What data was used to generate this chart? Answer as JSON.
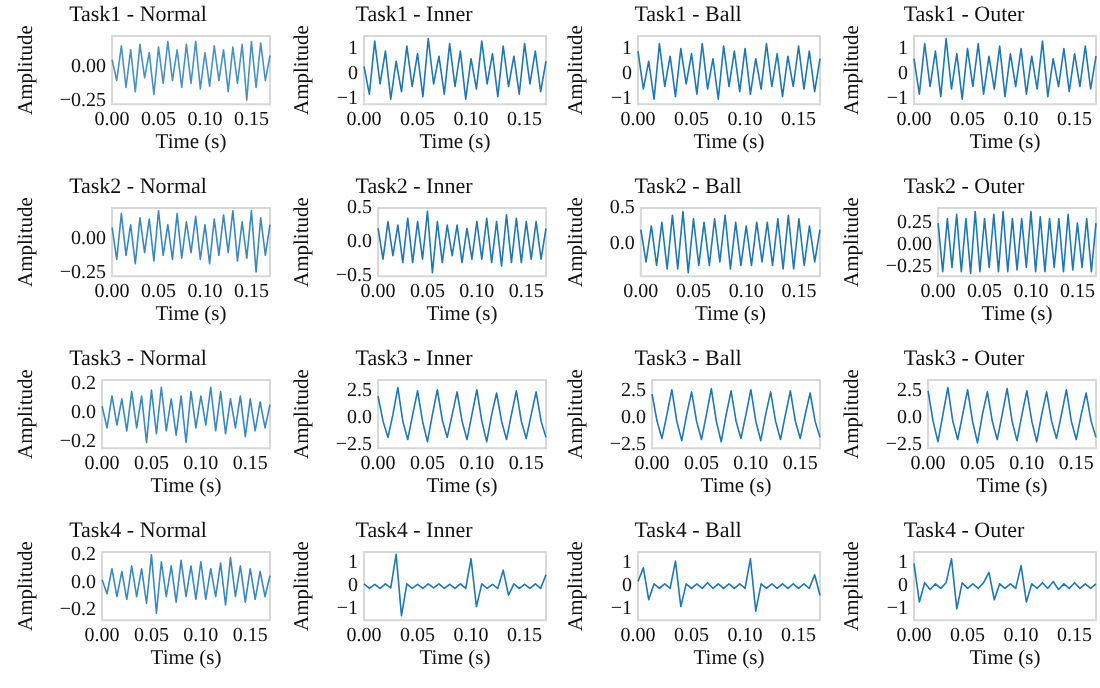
{
  "chart_data": [
    {
      "type": "line",
      "title": "Task1 - Normal",
      "xlabel": "Time (s)",
      "ylabel": "Amplitude",
      "xlim": [
        0,
        0.17
      ],
      "xticks": [
        {
          "value": 0,
          "label": "0.00"
        },
        {
          "value": 0.05,
          "label": "0.05"
        },
        {
          "value": 0.1,
          "label": "0.10"
        },
        {
          "value": 0.15,
          "label": "0.15"
        }
      ],
      "ylim": [
        -0.27,
        0.22
      ],
      "yticks": [
        {
          "value": -0.25,
          "label": "−0.25"
        },
        {
          "value": 0,
          "label": "0.00"
        }
      ],
      "x": [
        0,
        0.005,
        0.01,
        0.015,
        0.02,
        0.025,
        0.03,
        0.035,
        0.04,
        0.045,
        0.05,
        0.055,
        0.06,
        0.065,
        0.07,
        0.075,
        0.08,
        0.085,
        0.09,
        0.095,
        0.1,
        0.105,
        0.11,
        0.115,
        0.12,
        0.125,
        0.13,
        0.135,
        0.14,
        0.145,
        0.15,
        0.155,
        0.16,
        0.165,
        0.17
      ],
      "series": [
        {
          "color": "#4a91c2",
          "values": [
            0.05,
            -0.1,
            0.15,
            -0.15,
            0.12,
            -0.18,
            0.16,
            -0.08,
            0.1,
            -0.2,
            0.14,
            -0.12,
            0.18,
            -0.1,
            0.12,
            -0.15,
            0.16,
            -0.12,
            0.18,
            -0.16,
            0.1,
            -0.14,
            0.15,
            -0.1,
            0.12,
            -0.18,
            0.14,
            -0.12,
            0.16,
            -0.24,
            0.18,
            -0.15,
            0.17,
            -0.1,
            0.08
          ]
        }
      ]
    },
    {
      "type": "line",
      "title": "Task1 - Inner",
      "xlabel": "Time (s)",
      "ylabel": "Amplitude",
      "xlim": [
        0,
        0.17
      ],
      "xticks": [
        {
          "value": 0,
          "label": "0.00"
        },
        {
          "value": 0.05,
          "label": "0.05"
        },
        {
          "value": 0.1,
          "label": "0.10"
        },
        {
          "value": 0.15,
          "label": "0.15"
        }
      ],
      "ylim": [
        -1.2,
        1.5
      ],
      "yticks": [
        {
          "value": -1,
          "label": "−1"
        },
        {
          "value": 0,
          "label": "0"
        },
        {
          "value": 1,
          "label": "1"
        }
      ],
      "x": [
        0,
        0.005,
        0.01,
        0.015,
        0.02,
        0.025,
        0.03,
        0.035,
        0.04,
        0.045,
        0.05,
        0.055,
        0.06,
        0.065,
        0.07,
        0.075,
        0.08,
        0.085,
        0.09,
        0.095,
        0.1,
        0.105,
        0.11,
        0.115,
        0.12,
        0.125,
        0.13,
        0.135,
        0.14,
        0.145,
        0.15,
        0.155,
        0.16,
        0.165,
        0.17
      ],
      "series": [
        {
          "color": "#1f77b4",
          "values": [
            0.3,
            -0.8,
            1.3,
            -0.4,
            0.9,
            -1.0,
            0.5,
            -0.7,
            1.1,
            -0.5,
            0.8,
            -0.9,
            1.4,
            -0.4,
            0.7,
            -0.8,
            1.2,
            -0.5,
            0.9,
            -1.0,
            0.6,
            -0.6,
            1.3,
            -0.4,
            0.8,
            -0.9,
            1.1,
            -0.5,
            0.7,
            -0.8,
            1.2,
            -0.4,
            0.9,
            -0.7,
            0.5
          ]
        }
      ]
    },
    {
      "type": "line",
      "title": "Task1 - Ball",
      "xlabel": "Time (s)",
      "ylabel": "Amplitude",
      "xlim": [
        0,
        0.17
      ],
      "xticks": [
        {
          "value": 0,
          "label": "0.00"
        },
        {
          "value": 0.05,
          "label": "0.05"
        },
        {
          "value": 0.1,
          "label": "0.10"
        },
        {
          "value": 0.15,
          "label": "0.15"
        }
      ],
      "ylim": [
        -1.2,
        1.5
      ],
      "yticks": [
        {
          "value": -1,
          "label": "−1"
        },
        {
          "value": 0,
          "label": "0"
        },
        {
          "value": 1,
          "label": "1"
        }
      ],
      "x": [
        0,
        0.005,
        0.01,
        0.015,
        0.02,
        0.025,
        0.03,
        0.035,
        0.04,
        0.045,
        0.05,
        0.055,
        0.06,
        0.065,
        0.07,
        0.075,
        0.08,
        0.085,
        0.09,
        0.095,
        0.1,
        0.105,
        0.11,
        0.115,
        0.12,
        0.125,
        0.13,
        0.135,
        0.14,
        0.145,
        0.15,
        0.155,
        0.16,
        0.165,
        0.17
      ],
      "series": [
        {
          "color": "#1f77b4",
          "values": [
            0.9,
            -0.6,
            0.5,
            -1.0,
            1.2,
            -0.5,
            0.7,
            -0.9,
            1.0,
            -0.4,
            0.8,
            -0.8,
            1.2,
            -0.6,
            0.6,
            -1.0,
            1.1,
            -0.5,
            0.9,
            -0.7,
            1.0,
            -0.8,
            0.6,
            -0.6,
            1.2,
            -0.5,
            0.8,
            -0.9,
            0.7,
            -0.5,
            1.1,
            -0.6,
            0.9,
            -0.7,
            0.6
          ]
        }
      ]
    },
    {
      "type": "line",
      "title": "Task1 - Outer",
      "xlabel": "Time (s)",
      "ylabel": "Amplitude",
      "xlim": [
        0,
        0.17
      ],
      "xticks": [
        {
          "value": 0,
          "label": "0.00"
        },
        {
          "value": 0.05,
          "label": "0.05"
        },
        {
          "value": 0.1,
          "label": "0.10"
        },
        {
          "value": 0.15,
          "label": "0.15"
        }
      ],
      "ylim": [
        -1.2,
        1.5
      ],
      "yticks": [
        {
          "value": -1,
          "label": "−1"
        },
        {
          "value": 0,
          "label": "0"
        },
        {
          "value": 1,
          "label": "1"
        }
      ],
      "x": [
        0,
        0.005,
        0.01,
        0.015,
        0.02,
        0.025,
        0.03,
        0.035,
        0.04,
        0.045,
        0.05,
        0.055,
        0.06,
        0.065,
        0.07,
        0.075,
        0.08,
        0.085,
        0.09,
        0.095,
        0.1,
        0.105,
        0.11,
        0.115,
        0.12,
        0.125,
        0.13,
        0.135,
        0.14,
        0.145,
        0.15,
        0.155,
        0.16,
        0.165,
        0.17
      ],
      "series": [
        {
          "color": "#1f77b4",
          "values": [
            0.6,
            -0.8,
            1.2,
            -0.5,
            0.9,
            -0.9,
            1.4,
            -0.6,
            0.8,
            -1.0,
            1.0,
            -0.5,
            1.2,
            -0.8,
            0.7,
            -0.6,
            1.1,
            -0.9,
            0.8,
            -0.5,
            1.0,
            -0.8,
            0.7,
            -0.6,
            1.3,
            -0.9,
            0.6,
            -0.5,
            1.0,
            -0.7,
            0.8,
            -0.5,
            1.1,
            -0.6,
            0.7
          ]
        }
      ]
    },
    {
      "type": "line",
      "title": "Task2 - Normal",
      "xlabel": "Time (s)",
      "ylabel": "Amplitude",
      "xlim": [
        0,
        0.17
      ],
      "xticks": [
        {
          "value": 0,
          "label": "0.00"
        },
        {
          "value": 0.05,
          "label": "0.05"
        },
        {
          "value": 0.1,
          "label": "0.10"
        },
        {
          "value": 0.15,
          "label": "0.15"
        }
      ],
      "ylim": [
        -0.27,
        0.22
      ],
      "yticks": [
        {
          "value": -0.25,
          "label": "−0.25"
        },
        {
          "value": 0,
          "label": "0.00"
        }
      ],
      "x": [
        0,
        0.005,
        0.01,
        0.015,
        0.02,
        0.025,
        0.03,
        0.035,
        0.04,
        0.045,
        0.05,
        0.055,
        0.06,
        0.065,
        0.07,
        0.075,
        0.08,
        0.085,
        0.09,
        0.095,
        0.1,
        0.105,
        0.11,
        0.115,
        0.12,
        0.125,
        0.13,
        0.135,
        0.14,
        0.145,
        0.15,
        0.155,
        0.16,
        0.165,
        0.17
      ],
      "series": [
        {
          "color": "#3b88c0",
          "values": [
            0.08,
            -0.15,
            0.18,
            -0.12,
            0.1,
            -0.18,
            0.15,
            -0.1,
            0.14,
            -0.16,
            0.2,
            -0.12,
            0.1,
            -0.15,
            0.18,
            -0.14,
            0.12,
            -0.1,
            0.16,
            -0.15,
            0.1,
            -0.18,
            0.14,
            -0.12,
            0.17,
            -0.1,
            0.2,
            -0.16,
            0.12,
            -0.14,
            0.2,
            -0.24,
            0.15,
            -0.12,
            0.1
          ]
        }
      ]
    },
    {
      "type": "line",
      "title": "Task2 - Inner",
      "xlabel": "Time (s)",
      "ylabel": "Amplitude",
      "xlim": [
        0,
        0.17
      ],
      "xticks": [
        {
          "value": 0,
          "label": "0.00"
        },
        {
          "value": 0.05,
          "label": "0.05"
        },
        {
          "value": 0.1,
          "label": "0.10"
        },
        {
          "value": 0.15,
          "label": "0.15"
        }
      ],
      "ylim": [
        -0.5,
        0.5
      ],
      "yticks": [
        {
          "value": -0.5,
          "label": "−0.5"
        },
        {
          "value": 0,
          "label": "0.0"
        },
        {
          "value": 0.5,
          "label": "0.5"
        }
      ],
      "x": [
        0,
        0.005,
        0.01,
        0.015,
        0.02,
        0.025,
        0.03,
        0.035,
        0.04,
        0.045,
        0.05,
        0.055,
        0.06,
        0.065,
        0.07,
        0.075,
        0.08,
        0.085,
        0.09,
        0.095,
        0.1,
        0.105,
        0.11,
        0.115,
        0.12,
        0.125,
        0.13,
        0.135,
        0.14,
        0.145,
        0.15,
        0.155,
        0.16,
        0.165,
        0.17
      ],
      "series": [
        {
          "color": "#1f77b4",
          "values": [
            0.2,
            -0.25,
            0.3,
            -0.2,
            0.25,
            -0.3,
            0.35,
            -0.3,
            0.3,
            -0.25,
            0.45,
            -0.45,
            0.3,
            -0.3,
            0.25,
            -0.2,
            0.25,
            -0.3,
            0.2,
            -0.25,
            0.3,
            -0.25,
            0.35,
            -0.3,
            0.3,
            -0.35,
            0.4,
            -0.3,
            0.35,
            -0.3,
            0.3,
            -0.25,
            0.3,
            -0.25,
            0.2
          ]
        }
      ]
    },
    {
      "type": "line",
      "title": "Task2 - Ball",
      "xlabel": "Time (s)",
      "ylabel": "Amplitude",
      "xlim": [
        0,
        0.17
      ],
      "xticks": [
        {
          "value": 0,
          "label": "0.00"
        },
        {
          "value": 0.05,
          "label": "0.05"
        },
        {
          "value": 0.1,
          "label": "0.10"
        },
        {
          "value": 0.15,
          "label": "0.15"
        }
      ],
      "ylim": [
        -0.45,
        0.5
      ],
      "yticks": [
        {
          "value": 0,
          "label": "0.0"
        },
        {
          "value": 0.5,
          "label": "0.5"
        }
      ],
      "x": [
        0,
        0.005,
        0.01,
        0.015,
        0.02,
        0.025,
        0.03,
        0.035,
        0.04,
        0.045,
        0.05,
        0.055,
        0.06,
        0.065,
        0.07,
        0.075,
        0.08,
        0.085,
        0.09,
        0.095,
        0.1,
        0.105,
        0.11,
        0.115,
        0.12,
        0.125,
        0.13,
        0.135,
        0.14,
        0.145,
        0.15,
        0.155,
        0.16,
        0.165,
        0.17
      ],
      "series": [
        {
          "color": "#1f77b4",
          "values": [
            0.2,
            -0.25,
            0.25,
            -0.3,
            0.3,
            -0.35,
            0.4,
            -0.35,
            0.45,
            -0.4,
            0.35,
            -0.3,
            0.3,
            -0.3,
            0.35,
            -0.25,
            0.4,
            -0.35,
            0.3,
            -0.3,
            0.25,
            -0.3,
            0.3,
            -0.25,
            0.3,
            -0.3,
            0.35,
            -0.35,
            0.4,
            -0.35,
            0.35,
            -0.3,
            0.25,
            -0.25,
            0.2
          ]
        }
      ]
    },
    {
      "type": "line",
      "title": "Task2 - Outer",
      "xlabel": "Time (s)",
      "ylabel": "Amplitude",
      "xlim": [
        0,
        0.17
      ],
      "xticks": [
        {
          "value": 0,
          "label": "0.00"
        },
        {
          "value": 0.05,
          "label": "0.05"
        },
        {
          "value": 0.1,
          "label": "0.10"
        },
        {
          "value": 0.15,
          "label": "0.15"
        }
      ],
      "ylim": [
        -0.35,
        0.42
      ],
      "yticks": [
        {
          "value": -0.25,
          "label": "−0.25"
        },
        {
          "value": 0,
          "label": "0.00"
        },
        {
          "value": 0.25,
          "label": "0.25"
        }
      ],
      "x": [
        0,
        0.005,
        0.01,
        0.015,
        0.02,
        0.025,
        0.03,
        0.035,
        0.04,
        0.045,
        0.05,
        0.055,
        0.06,
        0.065,
        0.07,
        0.075,
        0.08,
        0.085,
        0.09,
        0.095,
        0.1,
        0.105,
        0.11,
        0.115,
        0.12,
        0.125,
        0.13,
        0.135,
        0.14,
        0.145,
        0.15,
        0.155,
        0.16,
        0.165,
        0.17
      ],
      "series": [
        {
          "color": "#1f77b4",
          "values": [
            0.25,
            -0.3,
            0.3,
            -0.25,
            0.35,
            -0.3,
            0.3,
            -0.32,
            0.38,
            -0.3,
            0.3,
            -0.25,
            0.35,
            -0.3,
            0.38,
            -0.3,
            0.3,
            -0.28,
            0.3,
            -0.25,
            0.38,
            -0.3,
            0.32,
            -0.3,
            0.3,
            -0.25,
            0.3,
            -0.3,
            0.35,
            -0.28,
            0.25,
            -0.25,
            0.3,
            -0.3,
            0.25
          ]
        }
      ]
    },
    {
      "type": "line",
      "title": "Task3 - Normal",
      "xlabel": "Time (s)",
      "ylabel": "Amplitude",
      "xlim": [
        0,
        0.17
      ],
      "xticks": [
        {
          "value": 0,
          "label": "0.00"
        },
        {
          "value": 0.05,
          "label": "0.05"
        },
        {
          "value": 0.1,
          "label": "0.10"
        },
        {
          "value": 0.15,
          "label": "0.15"
        }
      ],
      "ylim": [
        -0.24,
        0.23
      ],
      "yticks": [
        {
          "value": -0.2,
          "label": "−0.2"
        },
        {
          "value": 0,
          "label": "0.0"
        },
        {
          "value": 0.2,
          "label": "0.2"
        }
      ],
      "x": [
        0,
        0.005,
        0.01,
        0.015,
        0.02,
        0.025,
        0.03,
        0.035,
        0.04,
        0.045,
        0.05,
        0.055,
        0.06,
        0.065,
        0.07,
        0.075,
        0.08,
        0.085,
        0.09,
        0.095,
        0.1,
        0.105,
        0.11,
        0.115,
        0.12,
        0.125,
        0.13,
        0.135,
        0.14,
        0.145,
        0.15,
        0.155,
        0.16,
        0.165,
        0.17
      ],
      "series": [
        {
          "color": "#3b88c0",
          "values": [
            0.05,
            -0.1,
            0.12,
            -0.08,
            0.1,
            -0.12,
            0.15,
            -0.1,
            0.12,
            -0.2,
            0.16,
            -0.14,
            0.18,
            -0.12,
            0.1,
            -0.15,
            0.12,
            -0.2,
            0.15,
            -0.1,
            0.12,
            -0.08,
            0.18,
            -0.12,
            0.15,
            -0.14,
            0.1,
            -0.1,
            0.12,
            -0.16,
            0.1,
            -0.12,
            0.08,
            -0.1,
            0.06
          ]
        }
      ]
    },
    {
      "type": "line",
      "title": "Task3 - Inner",
      "xlabel": "Time (s)",
      "ylabel": "Amplitude",
      "xlim": [
        0,
        0.17
      ],
      "xticks": [
        {
          "value": 0,
          "label": "0.00"
        },
        {
          "value": 0.05,
          "label": "0.05"
        },
        {
          "value": 0.1,
          "label": "0.10"
        },
        {
          "value": 0.15,
          "label": "0.15"
        }
      ],
      "ylim": [
        -2.8,
        3.5
      ],
      "yticks": [
        {
          "value": -2.5,
          "label": "−2.5"
        },
        {
          "value": 0,
          "label": "0.0"
        },
        {
          "value": 2.5,
          "label": "2.5"
        }
      ],
      "x": [
        0,
        0.005,
        0.01,
        0.015,
        0.02,
        0.025,
        0.03,
        0.035,
        0.04,
        0.045,
        0.05,
        0.055,
        0.06,
        0.065,
        0.07,
        0.075,
        0.08,
        0.085,
        0.09,
        0.095,
        0.1,
        0.105,
        0.11,
        0.115,
        0.12,
        0.125,
        0.13,
        0.135,
        0.14,
        0.145,
        0.15,
        0.155,
        0.16,
        0.165,
        0.17
      ],
      "series": [
        {
          "color": "#1f77b4",
          "values": [
            2.0,
            -0.3,
            -1.8,
            0.3,
            2.8,
            -0.3,
            -2.0,
            0.3,
            2.5,
            -0.3,
            -2.2,
            0.3,
            2.6,
            -0.2,
            -1.8,
            0.3,
            2.4,
            -0.3,
            -2.0,
            0.3,
            2.6,
            -0.3,
            -2.2,
            0.3,
            2.3,
            -0.3,
            -2.0,
            0.3,
            2.5,
            -0.3,
            -1.9,
            0.3,
            2.4,
            -0.3,
            -1.8
          ]
        }
      ]
    },
    {
      "type": "line",
      "title": "Task3 - Ball",
      "xlabel": "Time (s)",
      "ylabel": "Amplitude",
      "xlim": [
        0,
        0.17
      ],
      "xticks": [
        {
          "value": 0,
          "label": "0.00"
        },
        {
          "value": 0.05,
          "label": "0.05"
        },
        {
          "value": 0.1,
          "label": "0.10"
        },
        {
          "value": 0.15,
          "label": "0.15"
        }
      ],
      "ylim": [
        -2.8,
        3.5
      ],
      "yticks": [
        {
          "value": -2.5,
          "label": "−2.5"
        },
        {
          "value": 0,
          "label": "0.0"
        },
        {
          "value": 2.5,
          "label": "2.5"
        }
      ],
      "x": [
        0,
        0.005,
        0.01,
        0.015,
        0.02,
        0.025,
        0.03,
        0.035,
        0.04,
        0.045,
        0.05,
        0.055,
        0.06,
        0.065,
        0.07,
        0.075,
        0.08,
        0.085,
        0.09,
        0.095,
        0.1,
        0.105,
        0.11,
        0.115,
        0.12,
        0.125,
        0.13,
        0.135,
        0.14,
        0.145,
        0.15,
        0.155,
        0.16,
        0.165,
        0.17
      ],
      "series": [
        {
          "color": "#1f77b4",
          "values": [
            2.2,
            -0.3,
            -1.9,
            0.3,
            2.6,
            -0.3,
            -2.1,
            0.3,
            2.4,
            -0.3,
            -2.0,
            0.3,
            2.7,
            -0.3,
            -2.2,
            0.3,
            2.5,
            -0.3,
            -1.9,
            0.3,
            2.6,
            -0.3,
            -2.1,
            0.3,
            2.4,
            -0.3,
            -2.0,
            0.3,
            2.5,
            -0.3,
            -1.9,
            0.3,
            2.3,
            -0.3,
            -1.8
          ]
        }
      ]
    },
    {
      "type": "line",
      "title": "Task3 - Outer",
      "xlabel": "Time (s)",
      "ylabel": "Amplitude",
      "xlim": [
        0,
        0.17
      ],
      "xticks": [
        {
          "value": 0,
          "label": "0.00"
        },
        {
          "value": 0.05,
          "label": "0.05"
        },
        {
          "value": 0.1,
          "label": "0.10"
        },
        {
          "value": 0.15,
          "label": "0.15"
        }
      ],
      "ylim": [
        -2.8,
        3.5
      ],
      "yticks": [
        {
          "value": -2.5,
          "label": "−2.5"
        },
        {
          "value": 0,
          "label": "0.0"
        },
        {
          "value": 2.5,
          "label": "2.5"
        }
      ],
      "x": [
        0,
        0.005,
        0.01,
        0.015,
        0.02,
        0.025,
        0.03,
        0.035,
        0.04,
        0.045,
        0.05,
        0.055,
        0.06,
        0.065,
        0.07,
        0.075,
        0.08,
        0.085,
        0.09,
        0.095,
        0.1,
        0.105,
        0.11,
        0.115,
        0.12,
        0.125,
        0.13,
        0.135,
        0.14,
        0.145,
        0.15,
        0.155,
        0.16,
        0.165,
        0.17
      ],
      "series": [
        {
          "color": "#1f77b4",
          "values": [
            2.5,
            -0.3,
            -2.2,
            0.3,
            2.8,
            -0.3,
            -2.0,
            0.3,
            2.6,
            -0.3,
            -2.3,
            0.3,
            2.4,
            -0.3,
            -2.0,
            0.3,
            2.7,
            -0.3,
            -2.1,
            0.3,
            2.5,
            -0.3,
            -2.2,
            0.3,
            2.4,
            -0.3,
            -1.9,
            0.3,
            2.6,
            -0.3,
            -2.0,
            0.3,
            2.3,
            -0.3,
            -1.8
          ]
        }
      ]
    },
    {
      "type": "line",
      "title": "Task4 - Normal",
      "xlabel": "Time (s)",
      "ylabel": "Amplitude",
      "xlim": [
        0,
        0.17
      ],
      "xticks": [
        {
          "value": 0,
          "label": "0.00"
        },
        {
          "value": 0.05,
          "label": "0.05"
        },
        {
          "value": 0.1,
          "label": "0.10"
        },
        {
          "value": 0.15,
          "label": "0.15"
        }
      ],
      "ylim": [
        -0.27,
        0.22
      ],
      "yticks": [
        {
          "value": -0.2,
          "label": "−0.2"
        },
        {
          "value": 0,
          "label": "0.0"
        },
        {
          "value": 0.2,
          "label": "0.2"
        }
      ],
      "x": [
        0,
        0.005,
        0.01,
        0.015,
        0.02,
        0.025,
        0.03,
        0.035,
        0.04,
        0.045,
        0.05,
        0.055,
        0.06,
        0.065,
        0.07,
        0.075,
        0.08,
        0.085,
        0.09,
        0.095,
        0.1,
        0.105,
        0.11,
        0.115,
        0.12,
        0.125,
        0.13,
        0.135,
        0.14,
        0.145,
        0.15,
        0.155,
        0.16,
        0.165,
        0.17
      ],
      "series": [
        {
          "color": "#3b88c0",
          "values": [
            0.02,
            -0.08,
            0.1,
            -0.1,
            0.08,
            -0.12,
            0.12,
            -0.1,
            0.1,
            -0.15,
            0.2,
            -0.22,
            0.15,
            -0.1,
            0.12,
            -0.14,
            0.16,
            -0.1,
            0.12,
            -0.12,
            0.15,
            -0.12,
            0.1,
            -0.1,
            0.14,
            -0.16,
            0.18,
            -0.1,
            0.12,
            -0.14,
            0.1,
            -0.12,
            0.08,
            -0.1,
            0.05
          ]
        }
      ]
    },
    {
      "type": "line",
      "title": "Task4 - Inner",
      "xlabel": "Time (s)",
      "ylabel": "Amplitude",
      "xlim": [
        0,
        0.17
      ],
      "xticks": [
        {
          "value": 0,
          "label": "0.00"
        },
        {
          "value": 0.05,
          "label": "0.05"
        },
        {
          "value": 0.1,
          "label": "0.10"
        },
        {
          "value": 0.15,
          "label": "0.15"
        }
      ],
      "ylim": [
        -1.5,
        1.5
      ],
      "yticks": [
        {
          "value": -1,
          "label": "−1"
        },
        {
          "value": 0,
          "label": "0"
        },
        {
          "value": 1,
          "label": "1"
        }
      ],
      "x": [
        0,
        0.005,
        0.01,
        0.015,
        0.02,
        0.025,
        0.03,
        0.035,
        0.04,
        0.045,
        0.05,
        0.055,
        0.06,
        0.065,
        0.07,
        0.075,
        0.08,
        0.085,
        0.09,
        0.095,
        0.1,
        0.105,
        0.11,
        0.115,
        0.12,
        0.125,
        0.13,
        0.135,
        0.14,
        0.145,
        0.15,
        0.155,
        0.16,
        0.165,
        0.17
      ],
      "series": [
        {
          "color": "#1f77b4",
          "values": [
            0.1,
            -0.1,
            0.08,
            -0.1,
            0.1,
            -0.08,
            1.4,
            -1.3,
            0.1,
            -0.1,
            0.08,
            -0.1,
            0.1,
            -0.08,
            0.1,
            -0.1,
            0.08,
            -0.1,
            0.1,
            -0.1,
            1.2,
            -0.9,
            0.1,
            -0.1,
            0.08,
            -0.1,
            0.7,
            -0.4,
            0.1,
            -0.1,
            0.08,
            -0.1,
            0.1,
            -0.1,
            0.5
          ]
        }
      ]
    },
    {
      "type": "line",
      "title": "Task4 - Ball",
      "xlabel": "Time (s)",
      "ylabel": "Amplitude",
      "xlim": [
        0,
        0.17
      ],
      "xticks": [
        {
          "value": 0,
          "label": "0.00"
        },
        {
          "value": 0.05,
          "label": "0.05"
        },
        {
          "value": 0.1,
          "label": "0.10"
        },
        {
          "value": 0.15,
          "label": "0.15"
        }
      ],
      "ylim": [
        -1.5,
        1.5
      ],
      "yticks": [
        {
          "value": -1,
          "label": "−1"
        },
        {
          "value": 0,
          "label": "0"
        },
        {
          "value": 1,
          "label": "1"
        }
      ],
      "x": [
        0,
        0.005,
        0.01,
        0.015,
        0.02,
        0.025,
        0.03,
        0.035,
        0.04,
        0.045,
        0.05,
        0.055,
        0.06,
        0.065,
        0.07,
        0.075,
        0.08,
        0.085,
        0.09,
        0.095,
        0.1,
        0.105,
        0.11,
        0.115,
        0.12,
        0.125,
        0.13,
        0.135,
        0.14,
        0.145,
        0.15,
        0.155,
        0.16,
        0.165,
        0.17
      ],
      "series": [
        {
          "color": "#1f77b4",
          "values": [
            0.2,
            0.8,
            -0.6,
            0.1,
            -0.1,
            0.1,
            -0.1,
            1.1,
            -0.9,
            0.1,
            -0.1,
            0.1,
            -0.1,
            0.15,
            -0.1,
            0.1,
            -0.1,
            0.1,
            -0.1,
            0.1,
            -0.1,
            1.2,
            -1.1,
            0.1,
            -0.1,
            0.1,
            -0.1,
            0.1,
            -0.1,
            0.1,
            -0.1,
            0.1,
            -0.1,
            0.5,
            -0.4
          ]
        }
      ]
    },
    {
      "type": "line",
      "title": "Task4 - Outer",
      "xlabel": "Time (s)",
      "ylabel": "Amplitude",
      "xlim": [
        0,
        0.17
      ],
      "xticks": [
        {
          "value": 0,
          "label": "0.00"
        },
        {
          "value": 0.05,
          "label": "0.05"
        },
        {
          "value": 0.1,
          "label": "0.10"
        },
        {
          "value": 0.15,
          "label": "0.15"
        }
      ],
      "ylim": [
        -1.5,
        1.5
      ],
      "yticks": [
        {
          "value": -1,
          "label": "−1"
        },
        {
          "value": 0,
          "label": "0"
        },
        {
          "value": 1,
          "label": "1"
        }
      ],
      "x": [
        0,
        0.005,
        0.01,
        0.015,
        0.02,
        0.025,
        0.03,
        0.035,
        0.04,
        0.045,
        0.05,
        0.055,
        0.06,
        0.065,
        0.07,
        0.075,
        0.08,
        0.085,
        0.09,
        0.095,
        0.1,
        0.105,
        0.11,
        0.115,
        0.12,
        0.125,
        0.13,
        0.135,
        0.14,
        0.145,
        0.15,
        0.155,
        0.16,
        0.165,
        0.17
      ],
      "series": [
        {
          "color": "#1f77b4",
          "values": [
            1.0,
            -0.7,
            0.15,
            -0.15,
            0.1,
            -0.1,
            0.15,
            1.2,
            -1.0,
            0.15,
            -0.1,
            0.1,
            -0.1,
            0.15,
            0.6,
            -0.6,
            0.1,
            -0.1,
            0.1,
            -0.1,
            0.9,
            -0.7,
            0.1,
            -0.1,
            0.15,
            -0.1,
            0.2,
            -0.15,
            0.1,
            -0.1,
            0.15,
            -0.1,
            0.1,
            -0.1,
            0.1
          ]
        }
      ]
    }
  ]
}
